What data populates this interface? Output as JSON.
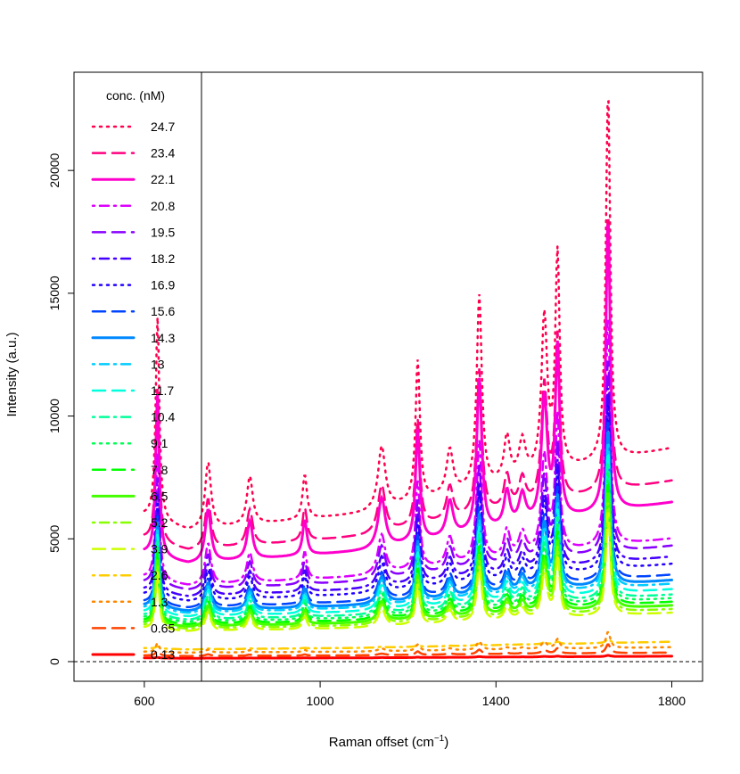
{
  "chart_data": {
    "type": "line",
    "title": "",
    "xlabel": "Raman offset (cm",
    "xlabel_sup": "−1",
    "xlabel_end": ")",
    "ylabel": "Intensity (a.u.)",
    "xlim": [
      440,
      1870
    ],
    "ylim": [
      -800,
      24000
    ],
    "xticks": [
      "600",
      "1000",
      "1400",
      "1800"
    ],
    "yticks": [
      "0",
      "5000",
      "10000",
      "15000",
      "20000"
    ],
    "legend_title": "conc. (nM)",
    "legend_position": "top-left",
    "zero_line": "dashed",
    "peaks_cm1": [
      630,
      745,
      840,
      965,
      1140,
      1222,
      1295,
      1362,
      1425,
      1460,
      1510,
      1540,
      1655
    ],
    "series": [
      {
        "name": "24.7",
        "color": "#ff004d",
        "dash": "dot",
        "baseline": 5900,
        "peak_max": 23000
      },
      {
        "name": "23.4",
        "color": "#ff0080",
        "dash": "longdash",
        "baseline": 5000,
        "peak_max": 18100
      },
      {
        "name": "22.1",
        "color": "#ff00cc",
        "dash": "solid",
        "baseline": 4400,
        "peak_max": 17900
      },
      {
        "name": "20.8",
        "color": "#dd00ff",
        "dash": "dashdot",
        "baseline": 3400,
        "peak_max": 14000
      },
      {
        "name": "19.5",
        "color": "#8800ff",
        "dash": "longdash",
        "baseline": 3200,
        "peak_max": 12300
      },
      {
        "name": "18.2",
        "color": "#4400ff",
        "dash": "dashdot",
        "baseline": 2900,
        "peak_max": 11200
      },
      {
        "name": "16.9",
        "color": "#2200ff",
        "dash": "dot",
        "baseline": 2700,
        "peak_max": 10600
      },
      {
        "name": "15.6",
        "color": "#0044ff",
        "dash": "longdash",
        "baseline": 2400,
        "peak_max": 9800
      },
      {
        "name": "14.3",
        "color": "#0088ff",
        "dash": "solid",
        "baseline": 2250,
        "peak_max": 9400
      },
      {
        "name": "13",
        "color": "#00ccff",
        "dash": "dashdot",
        "baseline": 2150,
        "peak_max": 9000
      },
      {
        "name": "11.7",
        "color": "#00ffdd",
        "dash": "longdash",
        "baseline": 2000,
        "peak_max": 8600
      },
      {
        "name": "10.4",
        "color": "#00ff99",
        "dash": "dashdot",
        "baseline": 1850,
        "peak_max": 8200
      },
      {
        "name": "9.1",
        "color": "#00ff55",
        "dash": "dot",
        "baseline": 1750,
        "peak_max": 7800
      },
      {
        "name": "7.8",
        "color": "#00ff00",
        "dash": "longdash",
        "baseline": 1650,
        "peak_max": 7400
      },
      {
        "name": "6.5",
        "color": "#44ff00",
        "dash": "solid",
        "baseline": 1550,
        "peak_max": 6900
      },
      {
        "name": "5.2",
        "color": "#88ff00",
        "dash": "dashdot",
        "baseline": 1450,
        "peak_max": 6500
      },
      {
        "name": "3.9",
        "color": "#ccff00",
        "dash": "longdash",
        "baseline": 1350,
        "peak_max": 6100
      },
      {
        "name": "2.6",
        "color": "#ffcc00",
        "dash": "dashdot",
        "baseline": 550,
        "peak_max": 900
      },
      {
        "name": "1.3",
        "color": "#ff8800",
        "dash": "dot",
        "baseline": 400,
        "peak_max": 1200
      },
      {
        "name": "0.65",
        "color": "#ff4400",
        "dash": "longdash",
        "baseline": 250,
        "peak_max": 700
      },
      {
        "name": "0.13",
        "color": "#ff0000",
        "dash": "solid",
        "baseline": 150,
        "peak_max": 250
      }
    ]
  }
}
